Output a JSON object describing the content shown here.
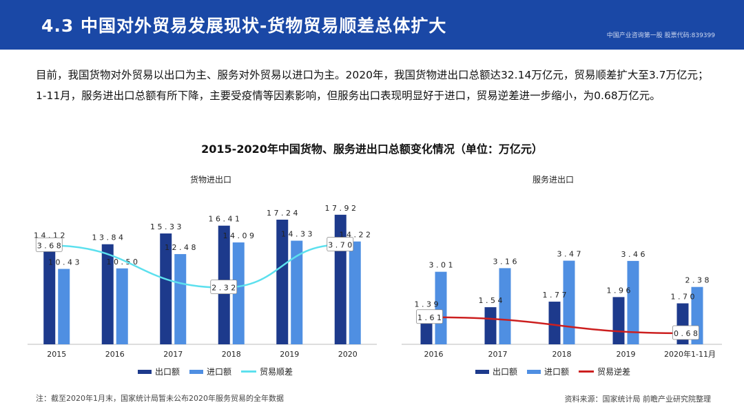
{
  "header": {
    "title": "4.3 中国对外贸易发展现状-货物贸易顺差总体扩大",
    "subtitle": "中国产业咨询第一股 股票代码:839399"
  },
  "intro": "目前，我国货物对外贸易以出口为主、服务对外贸易以进口为主。2020年，我国货物进出口总额达32.14万亿元，贸易顺差扩大至3.7万亿元；1-11月，服务进出口总额有所下降，主要受疫情等因素影响，但服务出口表现明显好于进口，贸易逆差进一步缩小，为0.68万亿元。",
  "colors": {
    "export": "#1d3a8c",
    "import": "#4f8fe2",
    "surplus": "#5ce0ee",
    "deficit": "#cc1f1f"
  },
  "chart_data": [
    {
      "type": "bar",
      "title": "2015-2020年中国货物、服务进出口总额变化情况（单位：万亿元）",
      "subtitle": "货物进出口",
      "categories": [
        "2015",
        "2016",
        "2017",
        "2018",
        "2019",
        "2020"
      ],
      "series": [
        {
          "name": "出口额",
          "type": "bar",
          "values": [
            14.12,
            13.84,
            15.33,
            16.41,
            17.24,
            17.92
          ]
        },
        {
          "name": "进口额",
          "type": "bar",
          "values": [
            10.43,
            10.5,
            12.48,
            14.09,
            14.33,
            14.22
          ]
        },
        {
          "name": "贸易顺差",
          "type": "line",
          "values": [
            3.68,
            null,
            null,
            2.32,
            null,
            3.7
          ]
        }
      ],
      "legend_position": "bottom"
    },
    {
      "type": "bar",
      "subtitle": "服务进出口",
      "categories": [
        "2016",
        "2017",
        "2018",
        "2019",
        "2020年1-11月"
      ],
      "series": [
        {
          "name": "出口额",
          "type": "bar",
          "values": [
            1.39,
            1.54,
            1.77,
            1.96,
            1.7
          ]
        },
        {
          "name": "进口额",
          "type": "bar",
          "values": [
            3.01,
            3.16,
            3.47,
            3.46,
            2.38
          ]
        },
        {
          "name": "贸易逆差",
          "type": "line",
          "values": [
            1.61,
            null,
            null,
            null,
            0.68
          ]
        }
      ],
      "legend_position": "bottom"
    }
  ],
  "footer": {
    "note": "注：截至2020年1月末，国家统计局暂未公布2020年服务贸易的全年数据",
    "source": "资料来源：国家统计局 前瞻产业研究院整理"
  }
}
